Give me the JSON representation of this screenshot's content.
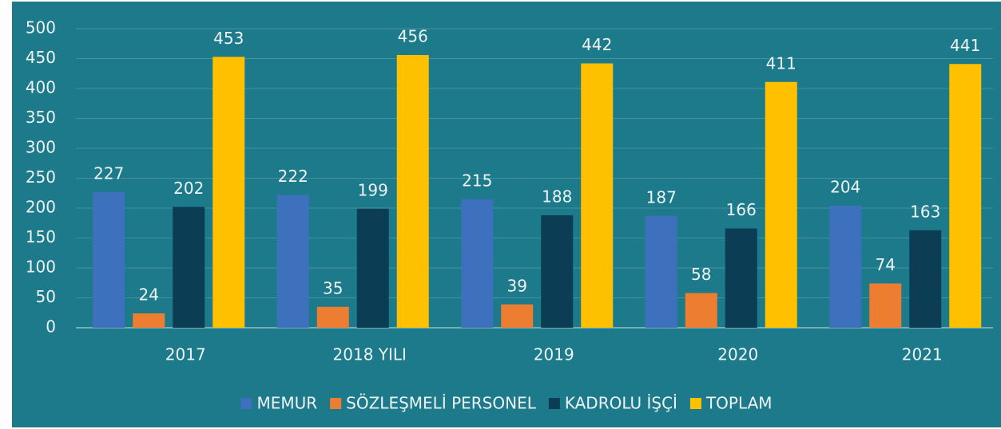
{
  "chart_data": {
    "type": "bar",
    "categories": [
      "2017",
      "2018 YILI",
      "2019",
      "2020",
      "2021"
    ],
    "series": [
      {
        "name": "MEMUR",
        "color": "#3d71bd",
        "values": [
          227,
          222,
          215,
          187,
          204
        ]
      },
      {
        "name": "SÖZLEŞMELİ PERSONEL",
        "color": "#ed7d31",
        "values": [
          24,
          35,
          39,
          58,
          74
        ]
      },
      {
        "name": "KADROLU İŞÇİ",
        "color": "#0b3d55",
        "values": [
          202,
          199,
          188,
          166,
          163
        ]
      },
      {
        "name": "TOPLAM",
        "color": "#ffc000",
        "values": [
          453,
          456,
          442,
          411,
          441
        ]
      }
    ],
    "ylim": [
      0,
      500
    ],
    "yticks": [
      0,
      50,
      100,
      150,
      200,
      250,
      300,
      350,
      400,
      450,
      500
    ],
    "grid": true,
    "legend": "bottom"
  }
}
